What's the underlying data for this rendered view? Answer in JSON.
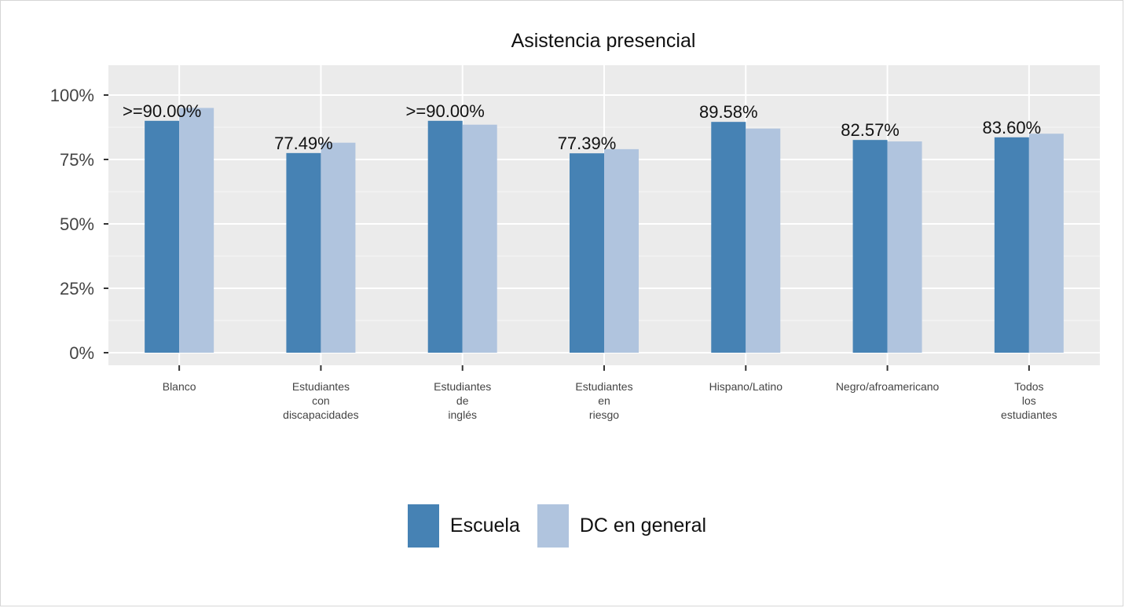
{
  "chart_data": {
    "type": "bar",
    "title": "Asistencia presencial",
    "xlabel": "",
    "ylabel": "",
    "ylim": [
      0,
      1.1
    ],
    "yticks": [
      {
        "value": 0,
        "label": "0%"
      },
      {
        "value": 0.25,
        "label": "25%"
      },
      {
        "value": 0.5,
        "label": "50%"
      },
      {
        "value": 0.75,
        "label": "75%"
      },
      {
        "value": 1.0,
        "label": "100%"
      }
    ],
    "categories": [
      [
        "Blanco"
      ],
      [
        "Estudiantes",
        "con",
        "discapacidades"
      ],
      [
        "Estudiantes",
        "de",
        "inglés"
      ],
      [
        "Estudiantes",
        "en",
        "riesgo"
      ],
      [
        "Hispano/Latino"
      ],
      [
        "Negro/afroamericano"
      ],
      [
        "Todos",
        "los",
        "estudiantes"
      ]
    ],
    "series": [
      {
        "name": "Escuela",
        "color": "#4682b4",
        "values": [
          0.9,
          0.7749,
          0.9,
          0.7739,
          0.8958,
          0.8257,
          0.836
        ]
      },
      {
        "name": "DC en general",
        "color": "#b0c4de",
        "values": [
          0.95,
          0.815,
          0.885,
          0.79,
          0.87,
          0.82,
          0.85
        ]
      }
    ],
    "data_labels": [
      ">=90.00%",
      "77.49%",
      ">=90.00%",
      "77.39%",
      "89.58%",
      "82.57%",
      "83.60%"
    ],
    "grid": true,
    "legend_position": "bottom",
    "panel_background": "#ebebeb"
  }
}
